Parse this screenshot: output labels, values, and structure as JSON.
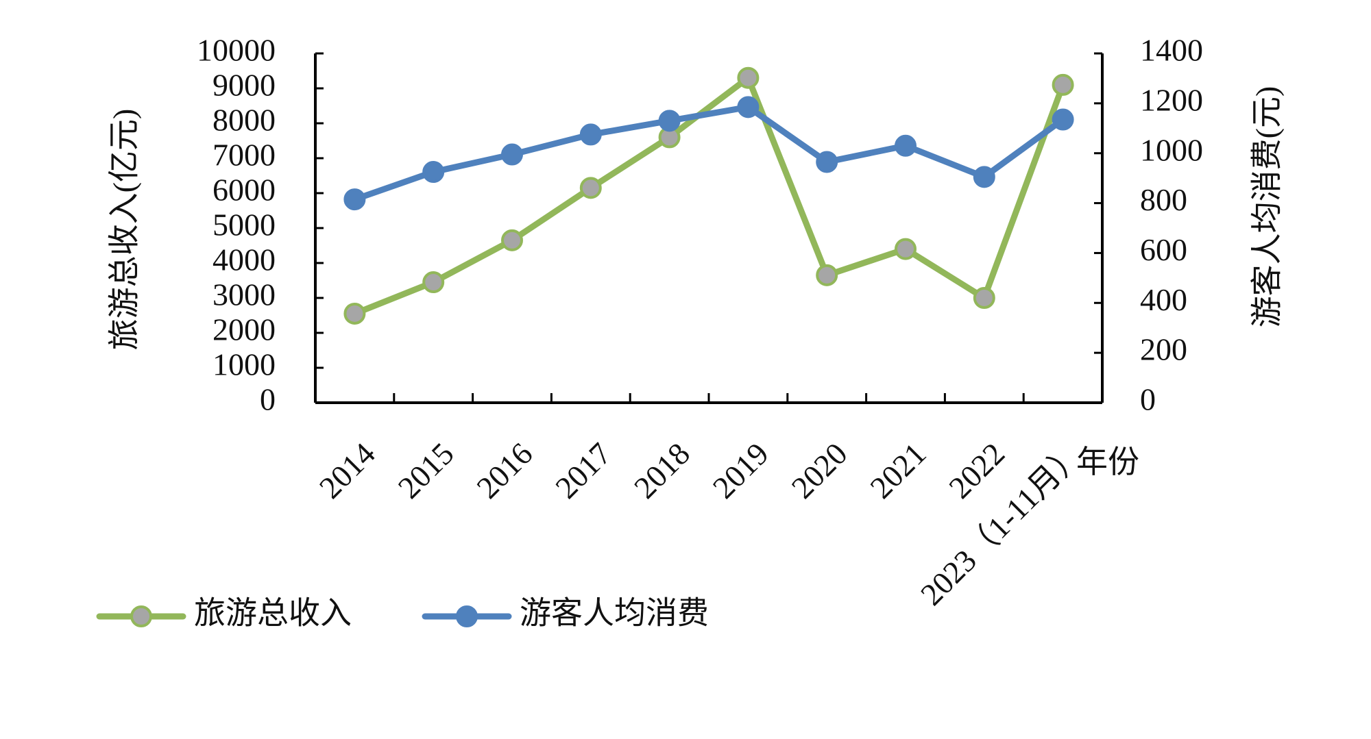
{
  "chart_data": {
    "type": "line",
    "categories": [
      "2014",
      "2015",
      "2016",
      "2017",
      "2018",
      "2019",
      "2020",
      "2021",
      "2022",
      "2023（1-11月）"
    ],
    "x_axis_title": "年份",
    "y_left": {
      "title": "旅游总收入(亿元)",
      "range": [
        0,
        10000
      ],
      "ticks": [
        0,
        1000,
        2000,
        3000,
        4000,
        5000,
        6000,
        7000,
        8000,
        9000,
        10000
      ]
    },
    "y_right": {
      "title": "游客人均消费(元)",
      "range": [
        0,
        1400
      ],
      "ticks": [
        0,
        200,
        400,
        600,
        800,
        1000,
        1200,
        1400
      ]
    },
    "series": [
      {
        "name": "旅游总收入",
        "axis": "left",
        "line_color": "#92b75a",
        "marker_color": "#a6a6a6",
        "values": [
          2550,
          3450,
          4650,
          6150,
          7600,
          9300,
          3650,
          4400,
          3000,
          9100
        ]
      },
      {
        "name": "游客人均消费",
        "axis": "right",
        "line_color": "#4f81bd",
        "marker_color": "#4f81bd",
        "values": [
          815,
          925,
          995,
          1075,
          1130,
          1185,
          965,
          1030,
          905,
          1135
        ]
      }
    ],
    "legend_position": "bottom-left",
    "grid": false
  }
}
